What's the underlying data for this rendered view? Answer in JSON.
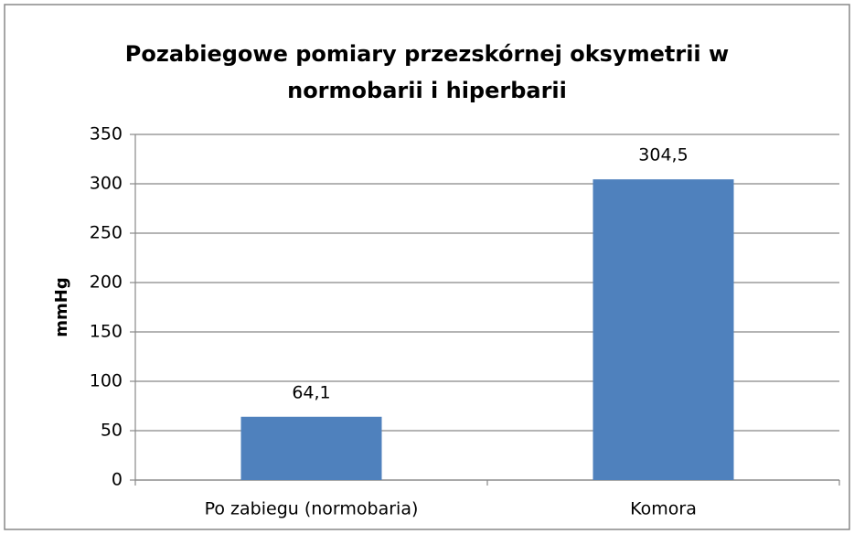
{
  "chart_data": {
    "type": "bar",
    "title": [
      "Pozabiegowe pomiary przezskórnej oksymetrii w",
      "normobarii i hiperbarii"
    ],
    "ylabel": "mmHg",
    "categories": [
      "Po zabiegu (normobaria)",
      "Komora"
    ],
    "values": [
      64.1,
      304.5
    ],
    "value_labels": [
      "64,1",
      "304,5"
    ],
    "color": "#4f81bd",
    "ylim": [
      0,
      350
    ],
    "yticks": [
      0,
      50,
      100,
      150,
      200,
      250,
      300,
      350
    ],
    "grid": true
  }
}
